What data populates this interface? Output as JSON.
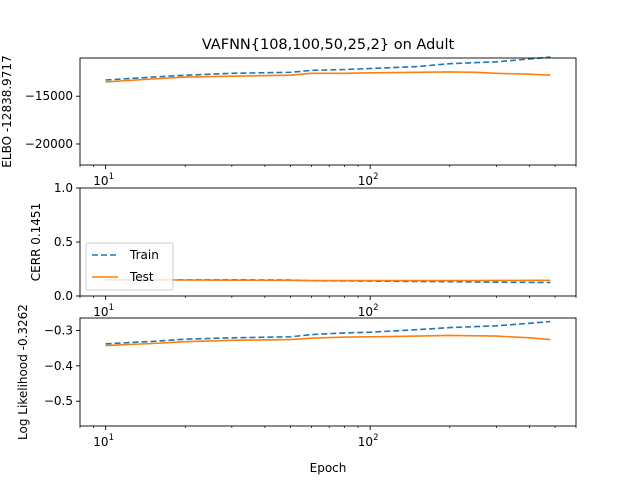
{
  "colors": {
    "train": "#1f77b4",
    "test": "#ff7f0e",
    "frame": "#000000"
  },
  "title": "VAFNN{108,100,50,25,2} on Adult",
  "xlabel": "Epoch",
  "legend": {
    "train_label": "Train",
    "test_label": "Test",
    "placement": "left, middle subplot"
  },
  "chart_data": [
    {
      "type": "line",
      "title": "VAFNN{108,100,50,25,2} on Adult",
      "ylabel": "ELBO -12838.9717",
      "xscale": "log",
      "xlim": [
        8,
        600
      ],
      "ylim": [
        -22200,
        -11000
      ],
      "xticks": [
        {
          "base": "10",
          "exp": "1",
          "value": 10
        },
        {
          "base": "10",
          "exp": "2",
          "value": 100
        }
      ],
      "yticks": [
        {
          "label": "−15000",
          "value": -15000
        },
        {
          "label": "−20000",
          "value": -20000
        }
      ],
      "series": [
        {
          "name": "Train",
          "style": "dashed",
          "x": [
            10,
            15,
            20,
            30,
            50,
            60,
            80,
            100,
            150,
            200,
            300,
            400,
            480
          ],
          "y": [
            -13300,
            -13000,
            -12800,
            -12600,
            -12500,
            -12300,
            -12200,
            -12100,
            -11900,
            -11600,
            -11400,
            -11100,
            -10900
          ]
        },
        {
          "name": "Test",
          "style": "solid",
          "x": [
            10,
            15,
            20,
            30,
            50,
            60,
            80,
            100,
            150,
            200,
            250,
            300,
            400,
            480
          ],
          "y": [
            -13500,
            -13200,
            -13000,
            -12900,
            -12800,
            -12600,
            -12600,
            -12550,
            -12500,
            -12450,
            -12500,
            -12600,
            -12700,
            -12800
          ]
        }
      ]
    },
    {
      "type": "line",
      "ylabel": "CERR 0.1451",
      "xscale": "log",
      "xlim": [
        8,
        600
      ],
      "ylim": [
        0,
        1
      ],
      "xticks": [
        {
          "base": "10",
          "exp": "1",
          "value": 10
        },
        {
          "base": "10",
          "exp": "2",
          "value": 100
        }
      ],
      "yticks": [
        {
          "label": "0.0",
          "value": 0
        },
        {
          "label": "0.5",
          "value": 0.5
        },
        {
          "label": "1.0",
          "value": 1
        }
      ],
      "series": [
        {
          "name": "Train",
          "style": "dashed",
          "x": [
            10,
            20,
            30,
            50,
            60,
            100,
            200,
            300,
            480
          ],
          "y": [
            0.15,
            0.15,
            0.15,
            0.148,
            0.142,
            0.138,
            0.132,
            0.128,
            0.125
          ]
        },
        {
          "name": "Test",
          "style": "solid",
          "x": [
            10,
            20,
            30,
            50,
            60,
            100,
            200,
            300,
            480
          ],
          "y": [
            0.15,
            0.148,
            0.146,
            0.145,
            0.143,
            0.143,
            0.143,
            0.144,
            0.145
          ]
        }
      ]
    },
    {
      "type": "line",
      "ylabel": "Log Likelihood -0.3262",
      "xscale": "log",
      "xlim": [
        8,
        600
      ],
      "ylim": [
        -0.57,
        -0.265
      ],
      "xticks": [
        {
          "base": "10",
          "exp": "1",
          "value": 10
        },
        {
          "base": "10",
          "exp": "2",
          "value": 100
        }
      ],
      "yticks": [
        {
          "label": "−0.3",
          "value": -0.3
        },
        {
          "label": "−0.4",
          "value": -0.4
        },
        {
          "label": "−0.5",
          "value": -0.5
        }
      ],
      "series": [
        {
          "name": "Train",
          "style": "dashed",
          "x": [
            10,
            15,
            20,
            30,
            50,
            60,
            80,
            100,
            150,
            200,
            300,
            400,
            480
          ],
          "y": [
            -0.338,
            -0.331,
            -0.325,
            -0.321,
            -0.318,
            -0.312,
            -0.307,
            -0.305,
            -0.298,
            -0.292,
            -0.287,
            -0.28,
            -0.275
          ]
        },
        {
          "name": "Test",
          "style": "solid",
          "x": [
            10,
            15,
            20,
            30,
            50,
            60,
            80,
            100,
            150,
            200,
            300,
            400,
            480
          ],
          "y": [
            -0.343,
            -0.337,
            -0.332,
            -0.328,
            -0.326,
            -0.322,
            -0.319,
            -0.318,
            -0.316,
            -0.314,
            -0.316,
            -0.321,
            -0.326
          ]
        }
      ]
    }
  ]
}
